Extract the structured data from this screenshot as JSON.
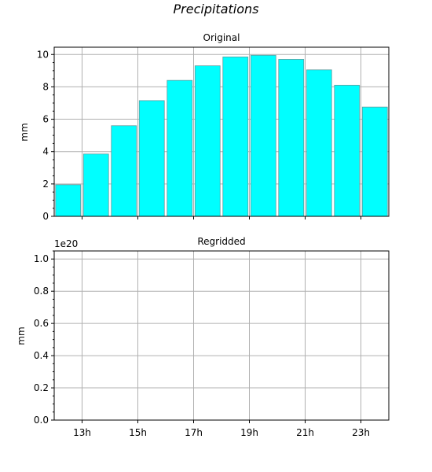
{
  "figure": {
    "title": "Precipitations"
  },
  "chart_data": [
    {
      "type": "bar",
      "title": "Original",
      "xlabel": "",
      "ylabel": "mm",
      "x": [
        12.5,
        13.5,
        14.5,
        15.5,
        16.5,
        17.5,
        18.5,
        19.5,
        20.5,
        21.5,
        22.5,
        23.5
      ],
      "values": [
        1.95,
        3.85,
        5.6,
        7.15,
        8.4,
        9.3,
        9.85,
        9.95,
        9.7,
        9.05,
        8.1,
        6.75
      ],
      "xlim": [
        12,
        24
      ],
      "ylim": [
        0,
        10.45
      ],
      "yticks": [
        0,
        2,
        4,
        6,
        8,
        10
      ],
      "xticks": [
        13,
        15,
        17,
        19,
        21,
        23
      ],
      "xtick_labels": [
        "",
        "",
        "",
        "",
        "",
        ""
      ],
      "grid": true,
      "colors": {
        "face": "#00ffff",
        "edge": "#5f9ea0"
      }
    },
    {
      "type": "bar",
      "title": "Regridded",
      "xlabel": "",
      "ylabel": "mm",
      "x": [],
      "values": [],
      "xlim": [
        12,
        24
      ],
      "ylim": [
        0,
        1.05
      ],
      "yticks": [
        0.0,
        0.2,
        0.4,
        0.6,
        0.8,
        1.0
      ],
      "ytick_labels": [
        "0.0",
        "0.2",
        "0.4",
        "0.6",
        "0.8",
        "1.0"
      ],
      "offset_label": "1e20",
      "xticks": [
        13,
        15,
        17,
        19,
        21,
        23
      ],
      "xtick_labels": [
        "13h",
        "15h",
        "17h",
        "19h",
        "21h",
        "23h"
      ],
      "grid": true
    }
  ]
}
